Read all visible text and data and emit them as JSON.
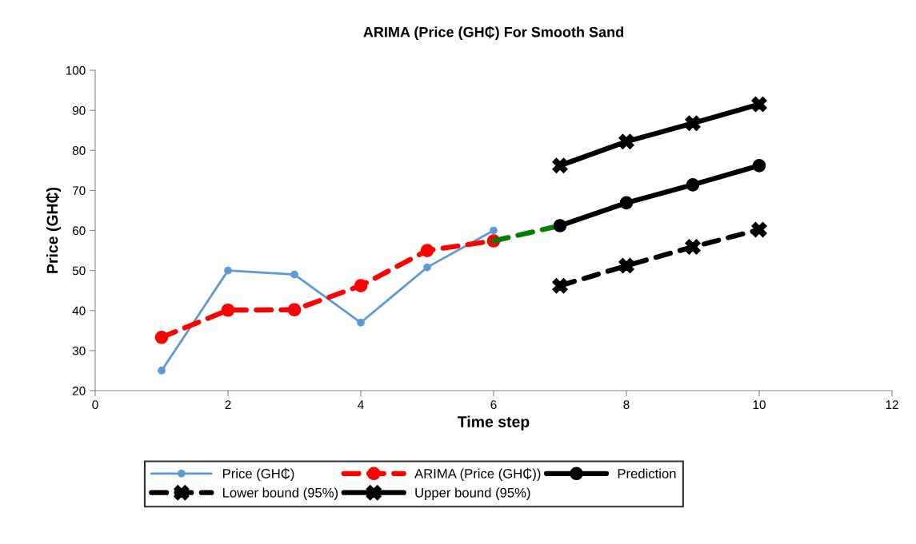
{
  "chart_data": {
    "type": "line",
    "title": "ARIMA (Price (GH₵) For Smooth Sand",
    "xlabel": "Time step",
    "ylabel": "Price (GH₵)",
    "xlim": [
      0,
      12
    ],
    "xticks": [
      0,
      2,
      4,
      6,
      8,
      10,
      12
    ],
    "ylim": [
      20,
      100
    ],
    "yticks": [
      20,
      30,
      40,
      50,
      60,
      70,
      80,
      90,
      100
    ],
    "grid": false,
    "legend": "bottom",
    "series": [
      {
        "name": "Price (GH₵)",
        "color": "#5b9bd5",
        "marker": "circle",
        "line_style": "solid",
        "x": [
          1,
          2,
          3,
          4,
          5,
          6
        ],
        "values": [
          25,
          50,
          49,
          37,
          50.8,
          60
        ]
      },
      {
        "name": "ARIMA (Price (GH₵))",
        "color": "#ff0000",
        "marker": "circle",
        "line_style": "dashed",
        "x": [
          1,
          2,
          3,
          4,
          5,
          6
        ],
        "values": [
          33.3,
          40.1,
          40.2,
          46.2,
          55,
          57.4
        ]
      },
      {
        "color": "#008000",
        "marker": "none",
        "line_style": "dashed",
        "x": [
          6,
          7
        ],
        "values": [
          57.4,
          61.2
        ]
      },
      {
        "name": "Prediction",
        "color": "#000000",
        "marker": "circle",
        "line_style": "solid",
        "x": [
          7,
          8,
          9,
          10
        ],
        "values": [
          61.2,
          66.9,
          71.4,
          76.2
        ]
      },
      {
        "name": "Lower bound (95%)",
        "color": "#000000",
        "marker": "cross",
        "line_style": "dashed",
        "x": [
          7,
          8,
          9,
          10
        ],
        "values": [
          46.2,
          51.2,
          55.9,
          60.2
        ]
      },
      {
        "name": "Upper bound (95%)",
        "color": "#000000",
        "marker": "cross",
        "line_style": "solid",
        "x": [
          7,
          8,
          9,
          10
        ],
        "values": [
          76.2,
          82.2,
          86.8,
          91.5
        ]
      }
    ]
  }
}
